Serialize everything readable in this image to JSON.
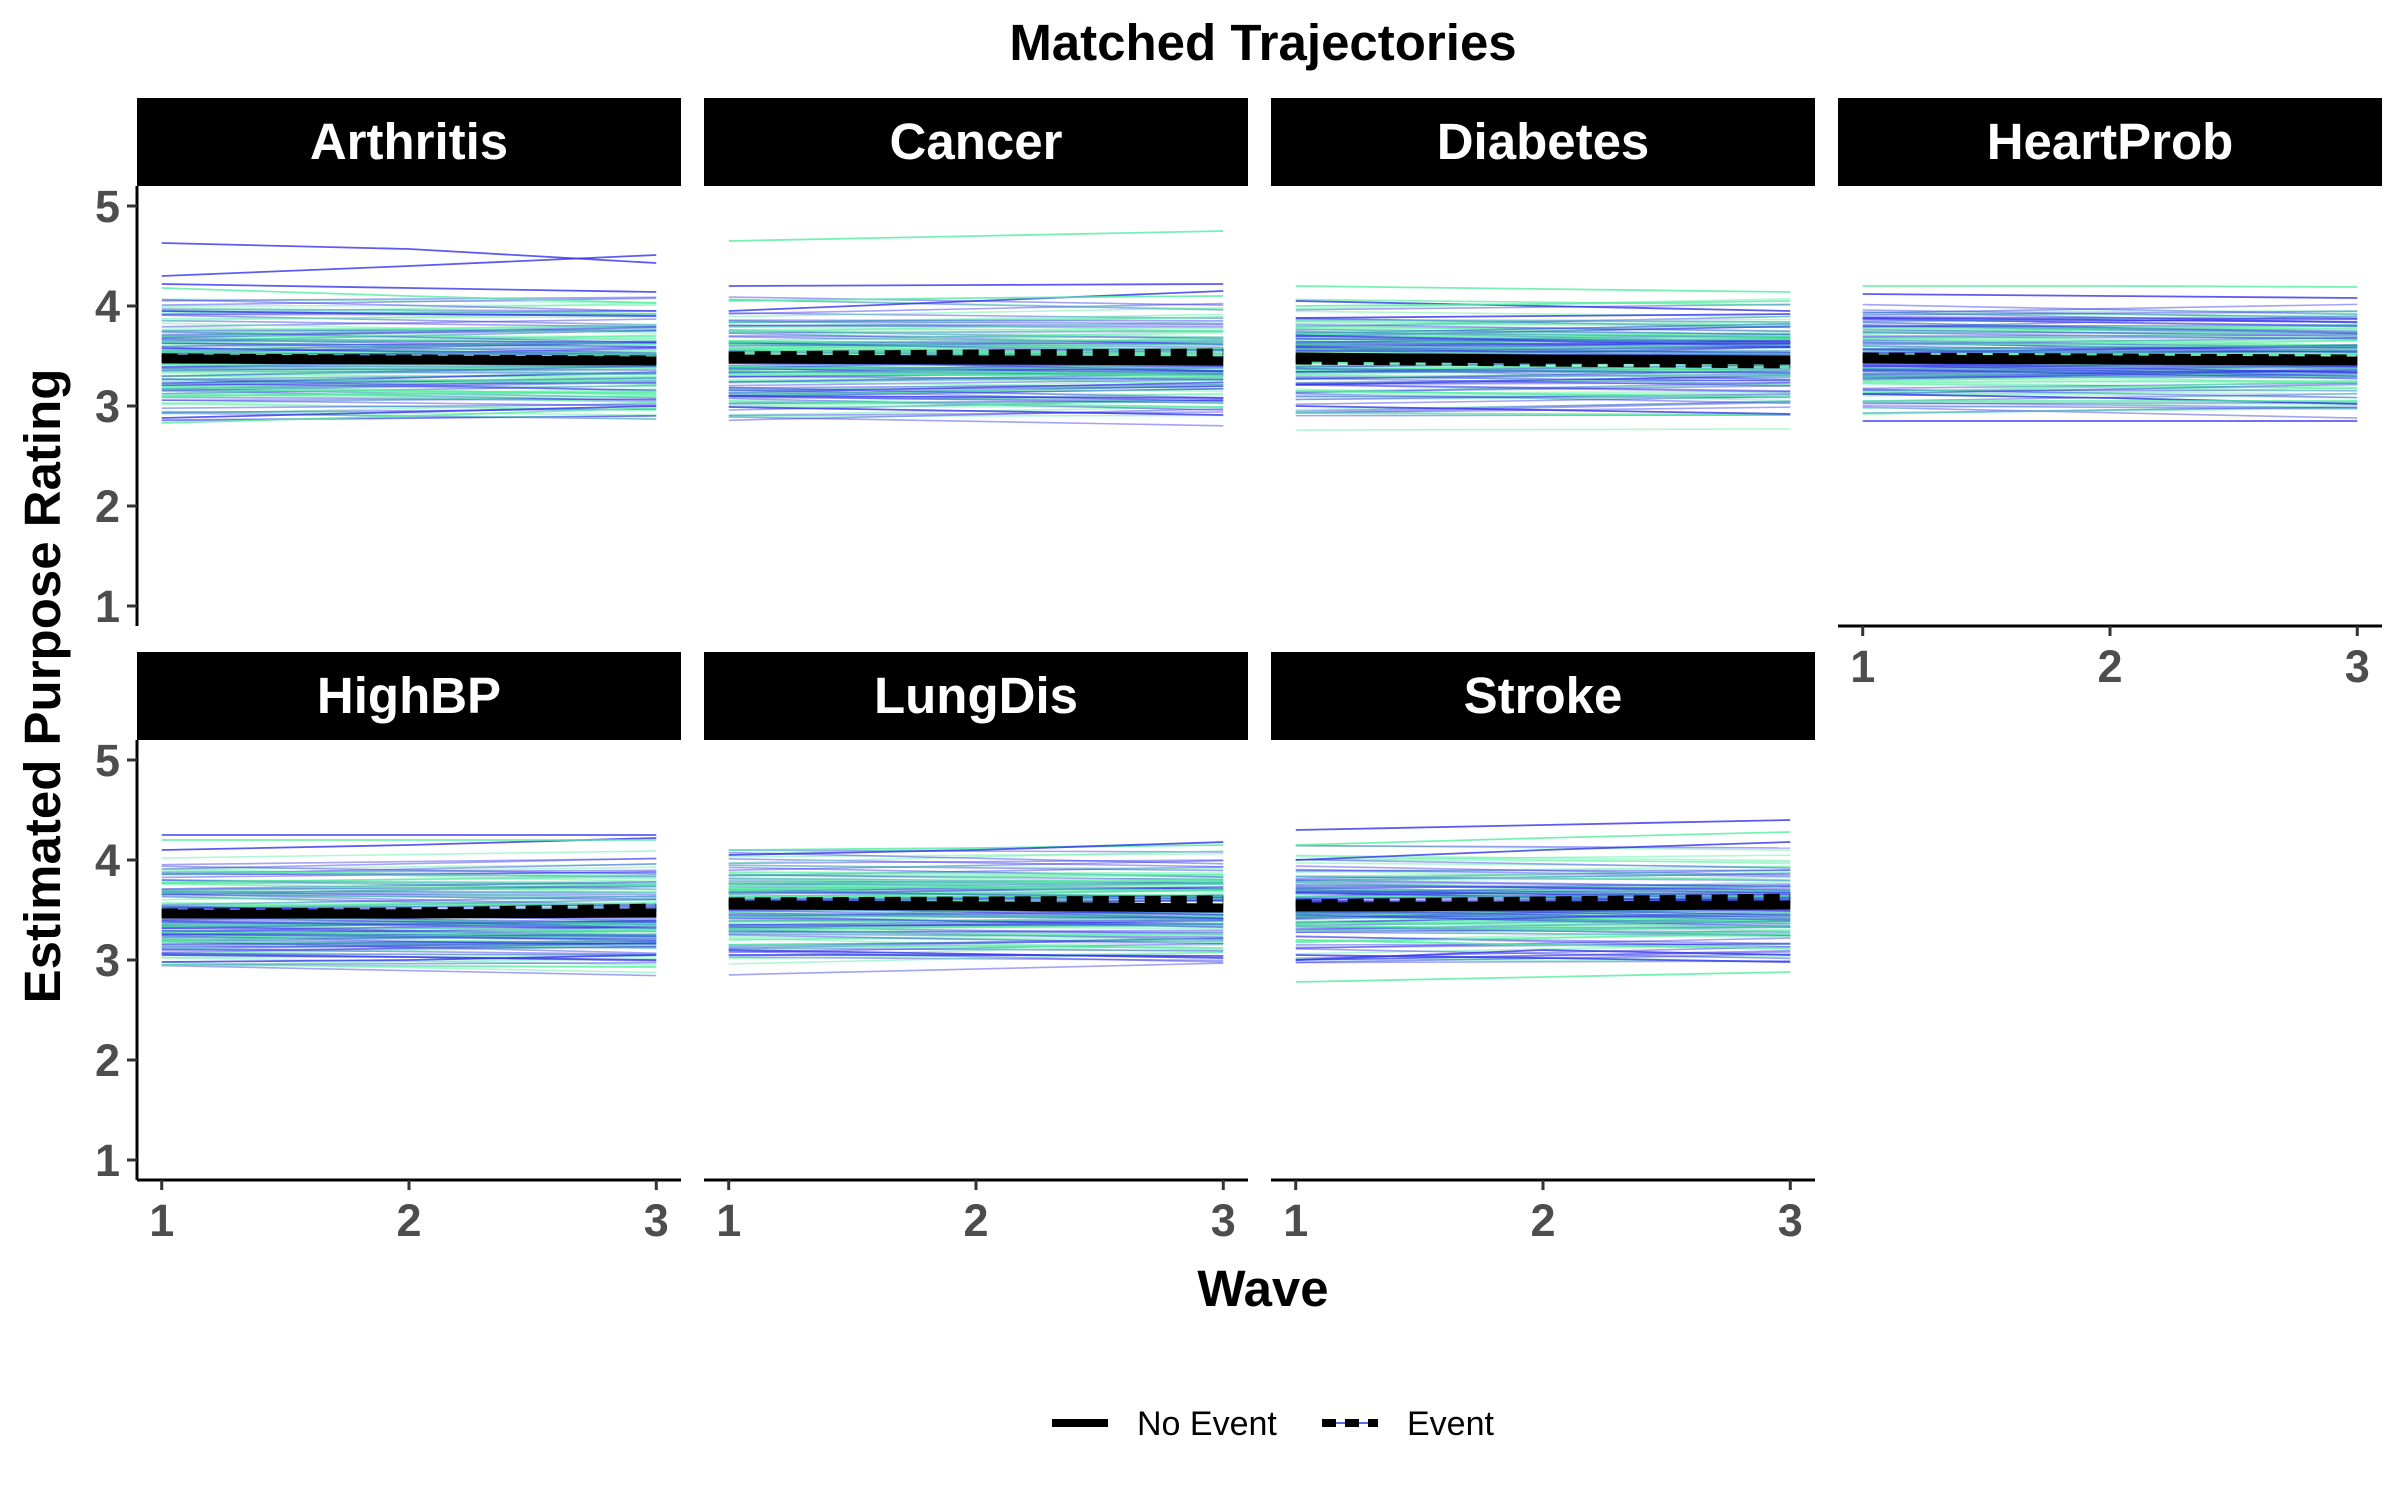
{
  "chart_data": {
    "type": "line",
    "title": "Matched Trajectories",
    "xlabel": "Wave",
    "ylabel": "Estimated Purpose Rating",
    "x": [
      1,
      2,
      3
    ],
    "xlim": [
      0.9,
      3.1
    ],
    "ylim": [
      0.8,
      5.2
    ],
    "x_ticks": [
      "1",
      "2",
      "3"
    ],
    "y_ticks": [
      "1",
      "2",
      "3",
      "4",
      "5"
    ],
    "grid": false,
    "legend_position": "bottom",
    "legend": [
      {
        "label": "No Event",
        "linetype": "solid"
      },
      {
        "label": "Event",
        "linetype": "dashed"
      }
    ],
    "colors": {
      "event_individual": "#3333ee",
      "no_event_individual": "#55eea0",
      "mean_line": "#000000",
      "strip": "#000000"
    },
    "panels": [
      {
        "name": "Arthritis",
        "mean_no_event": [
          3.47,
          3.46,
          3.45
        ],
        "mean_event": [
          3.48,
          3.47,
          3.46
        ],
        "individual_lines": [
          {
            "group": "event",
            "y": [
              4.63,
              4.57,
              4.43
            ]
          },
          {
            "group": "event",
            "y": [
              4.3,
              4.4,
              4.51
            ]
          },
          {
            "group": "event",
            "y": [
              4.22,
              4.18,
              4.14
            ]
          },
          {
            "group": "no_event",
            "y": [
              4.18,
              4.1,
              4.03
            ]
          },
          {
            "group": "no_event",
            "y": [
              2.83,
              2.9,
              2.98
            ]
          },
          {
            "group": "event",
            "y": [
              2.88,
              2.94,
              3.0
            ]
          },
          {
            "group": "event",
            "y": [
              3.95,
              3.92,
              3.9
            ]
          },
          {
            "group": "no_event",
            "y": [
              3.1,
              3.12,
              3.14
            ]
          }
        ]
      },
      {
        "name": "Cancer",
        "mean_no_event": [
          3.47,
          3.46,
          3.45
        ],
        "mean_event": [
          3.5,
          3.52,
          3.53
        ],
        "individual_lines": [
          {
            "group": "no_event",
            "y": [
              4.65,
              4.7,
              4.75
            ]
          },
          {
            "group": "event",
            "y": [
              4.2,
              4.21,
              4.22
            ]
          },
          {
            "group": "event",
            "y": [
              3.95,
              4.05,
              4.15
            ]
          },
          {
            "group": "no_event",
            "y": [
              4.05,
              4.08,
              4.1
            ]
          },
          {
            "group": "event",
            "y": [
              2.99,
              2.95,
              2.91
            ]
          },
          {
            "group": "no_event",
            "y": [
              3.05,
              3.02,
              2.99
            ]
          },
          {
            "group": "event",
            "y": [
              3.1,
              3.09,
              3.08
            ]
          }
        ]
      },
      {
        "name": "Diabetes",
        "mean_no_event": [
          3.49,
          3.47,
          3.46
        ],
        "mean_event": [
          3.46,
          3.44,
          3.42
        ],
        "individual_lines": [
          {
            "group": "no_event",
            "y": [
              4.2,
              4.17,
              4.14
            ]
          },
          {
            "group": "event",
            "y": [
              4.05,
              4.0,
              3.95
            ]
          },
          {
            "group": "no_event",
            "y": [
              4.0,
              4.02,
              4.05
            ]
          },
          {
            "group": "event",
            "y": [
              3.88,
              3.9,
              3.92
            ]
          },
          {
            "group": "no_event",
            "y": [
              2.93,
              2.92,
              2.91
            ]
          },
          {
            "group": "event",
            "y": [
              3.0,
              2.96,
              2.92
            ]
          },
          {
            "group": "no_event",
            "y": [
              3.15,
              3.12,
              3.09
            ]
          }
        ]
      },
      {
        "name": "HeartProb",
        "mean_no_event": [
          3.47,
          3.46,
          3.45
        ],
        "mean_event": [
          3.49,
          3.48,
          3.47
        ],
        "individual_lines": [
          {
            "group": "no_event",
            "y": [
              4.2,
              4.2,
              4.19
            ]
          },
          {
            "group": "event",
            "y": [
              4.12,
              4.1,
              4.08
            ]
          },
          {
            "group": "event",
            "y": [
              2.85,
              2.85,
              2.85
            ]
          },
          {
            "group": "event",
            "y": [
              3.12,
              3.08,
              3.02
            ]
          },
          {
            "group": "no_event",
            "y": [
              3.05,
              3.05,
              3.05
            ]
          },
          {
            "group": "event",
            "y": [
              3.88,
              3.86,
              3.84
            ]
          }
        ]
      },
      {
        "name": "HighBP",
        "mean_no_event": [
          3.46,
          3.46,
          3.47
        ],
        "mean_event": [
          3.47,
          3.48,
          3.52
        ],
        "individual_lines": [
          {
            "group": "event",
            "y": [
              4.25,
              4.25,
              4.25
            ]
          },
          {
            "group": "event",
            "y": [
              4.1,
              4.15,
              4.22
            ]
          },
          {
            "group": "no_event",
            "y": [
              4.2,
              4.2,
              4.2
            ]
          },
          {
            "group": "event",
            "y": [
              2.98,
              3.0,
              3.05
            ]
          },
          {
            "group": "no_event",
            "y": [
              2.95,
              2.94,
              2.93
            ]
          },
          {
            "group": "event",
            "y": [
              3.05,
              3.03,
              3.0
            ]
          }
        ]
      },
      {
        "name": "LungDis",
        "mean_no_event": [
          3.55,
          3.54,
          3.52
        ],
        "mean_event": [
          3.58,
          3.59,
          3.6
        ],
        "individual_lines": [
          {
            "group": "no_event",
            "y": [
              4.1,
              4.12,
              4.15
            ]
          },
          {
            "group": "event",
            "y": [
              4.05,
              4.1,
              4.18
            ]
          },
          {
            "group": "event",
            "y": [
              3.1,
              3.06,
              3.02
            ]
          },
          {
            "group": "no_event",
            "y": [
              3.15,
              3.14,
              3.12
            ]
          },
          {
            "group": "event",
            "y": [
              3.05,
              3.05,
              3.04
            ]
          }
        ]
      },
      {
        "name": "Stroke",
        "mean_no_event": [
          3.53,
          3.54,
          3.55
        ],
        "mean_event": [
          3.56,
          3.59,
          3.62
        ],
        "individual_lines": [
          {
            "group": "event",
            "y": [
              4.3,
              4.35,
              4.4
            ]
          },
          {
            "group": "no_event",
            "y": [
              4.15,
              4.22,
              4.28
            ]
          },
          {
            "group": "event",
            "y": [
              4.0,
              4.1,
              4.18
            ]
          },
          {
            "group": "no_event",
            "y": [
              2.78,
              2.83,
              2.88
            ]
          },
          {
            "group": "event",
            "y": [
              3.0,
              3.1,
              3.05
            ]
          },
          {
            "group": "event",
            "y": [
              3.05,
              3.02,
              2.98
            ]
          },
          {
            "group": "no_event",
            "y": [
              3.2,
              3.15,
              3.12
            ]
          }
        ]
      }
    ]
  }
}
